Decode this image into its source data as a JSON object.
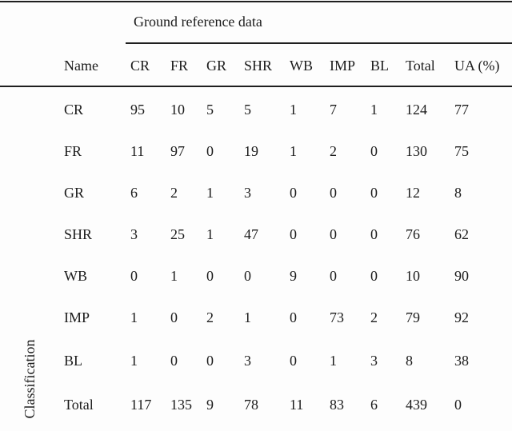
{
  "page": {
    "background_color": "#fdfdfd",
    "text_color": "#1b1b1b",
    "rule_color": "#1f1f1f"
  },
  "table": {
    "side_label": "Classification",
    "group_header": "Ground reference data",
    "columns": [
      "Name",
      "CR",
      "FR",
      "GR",
      "SHR",
      "WB",
      "IMP",
      "BL",
      "Total",
      "UA (%)"
    ],
    "rows": [
      {
        "name": "CR",
        "values": [
          "95",
          "10",
          "5",
          "5",
          "1",
          "7",
          "1",
          "124",
          "77"
        ]
      },
      {
        "name": "FR",
        "values": [
          "11",
          "97",
          "0",
          "19",
          "1",
          "2",
          "0",
          "130",
          "75"
        ]
      },
      {
        "name": "GR",
        "values": [
          "6",
          "2",
          "1",
          "3",
          "0",
          "0",
          "0",
          "12",
          "8"
        ]
      },
      {
        "name": "SHR",
        "values": [
          "3",
          "25",
          "1",
          "47",
          "0",
          "0",
          "0",
          "76",
          "62"
        ]
      },
      {
        "name": "WB",
        "values": [
          "0",
          "1",
          "0",
          "0",
          "9",
          "0",
          "0",
          "10",
          "90"
        ]
      },
      {
        "name": "IMP",
        "values": [
          "1",
          "0",
          "2",
          "1",
          "0",
          "73",
          "2",
          "79",
          "92"
        ]
      },
      {
        "name": "BL",
        "values": [
          "1",
          "0",
          "0",
          "3",
          "0",
          "1",
          "3",
          "8",
          "38"
        ]
      },
      {
        "name": "Total",
        "values": [
          "117",
          "135",
          "9",
          "78",
          "11",
          "83",
          "6",
          "439",
          "0"
        ]
      }
    ]
  }
}
